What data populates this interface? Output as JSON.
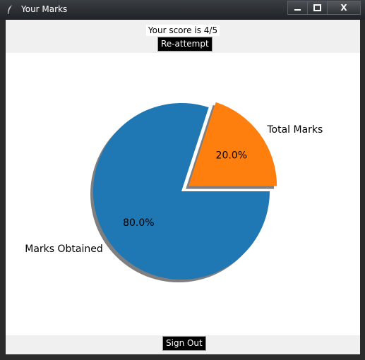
{
  "window": {
    "title": "Your Marks",
    "minimize_glyph": "—",
    "maximize_glyph": "□",
    "close_glyph": "X"
  },
  "header": {
    "score_text": "Your score is 4/5",
    "reattempt_label": "Re-attempt"
  },
  "footer": {
    "signout_label": "Sign Out"
  },
  "chart_data": {
    "type": "pie",
    "categories": [
      "Marks Obtained",
      "Total Marks"
    ],
    "values": [
      4,
      1
    ],
    "percent_labels": [
      "80.0%",
      "20.0%"
    ],
    "explode": [
      0,
      0.1
    ],
    "colors": [
      "#1f77b4",
      "#ff7f0e"
    ],
    "shadow": true,
    "start_angle": 0
  }
}
